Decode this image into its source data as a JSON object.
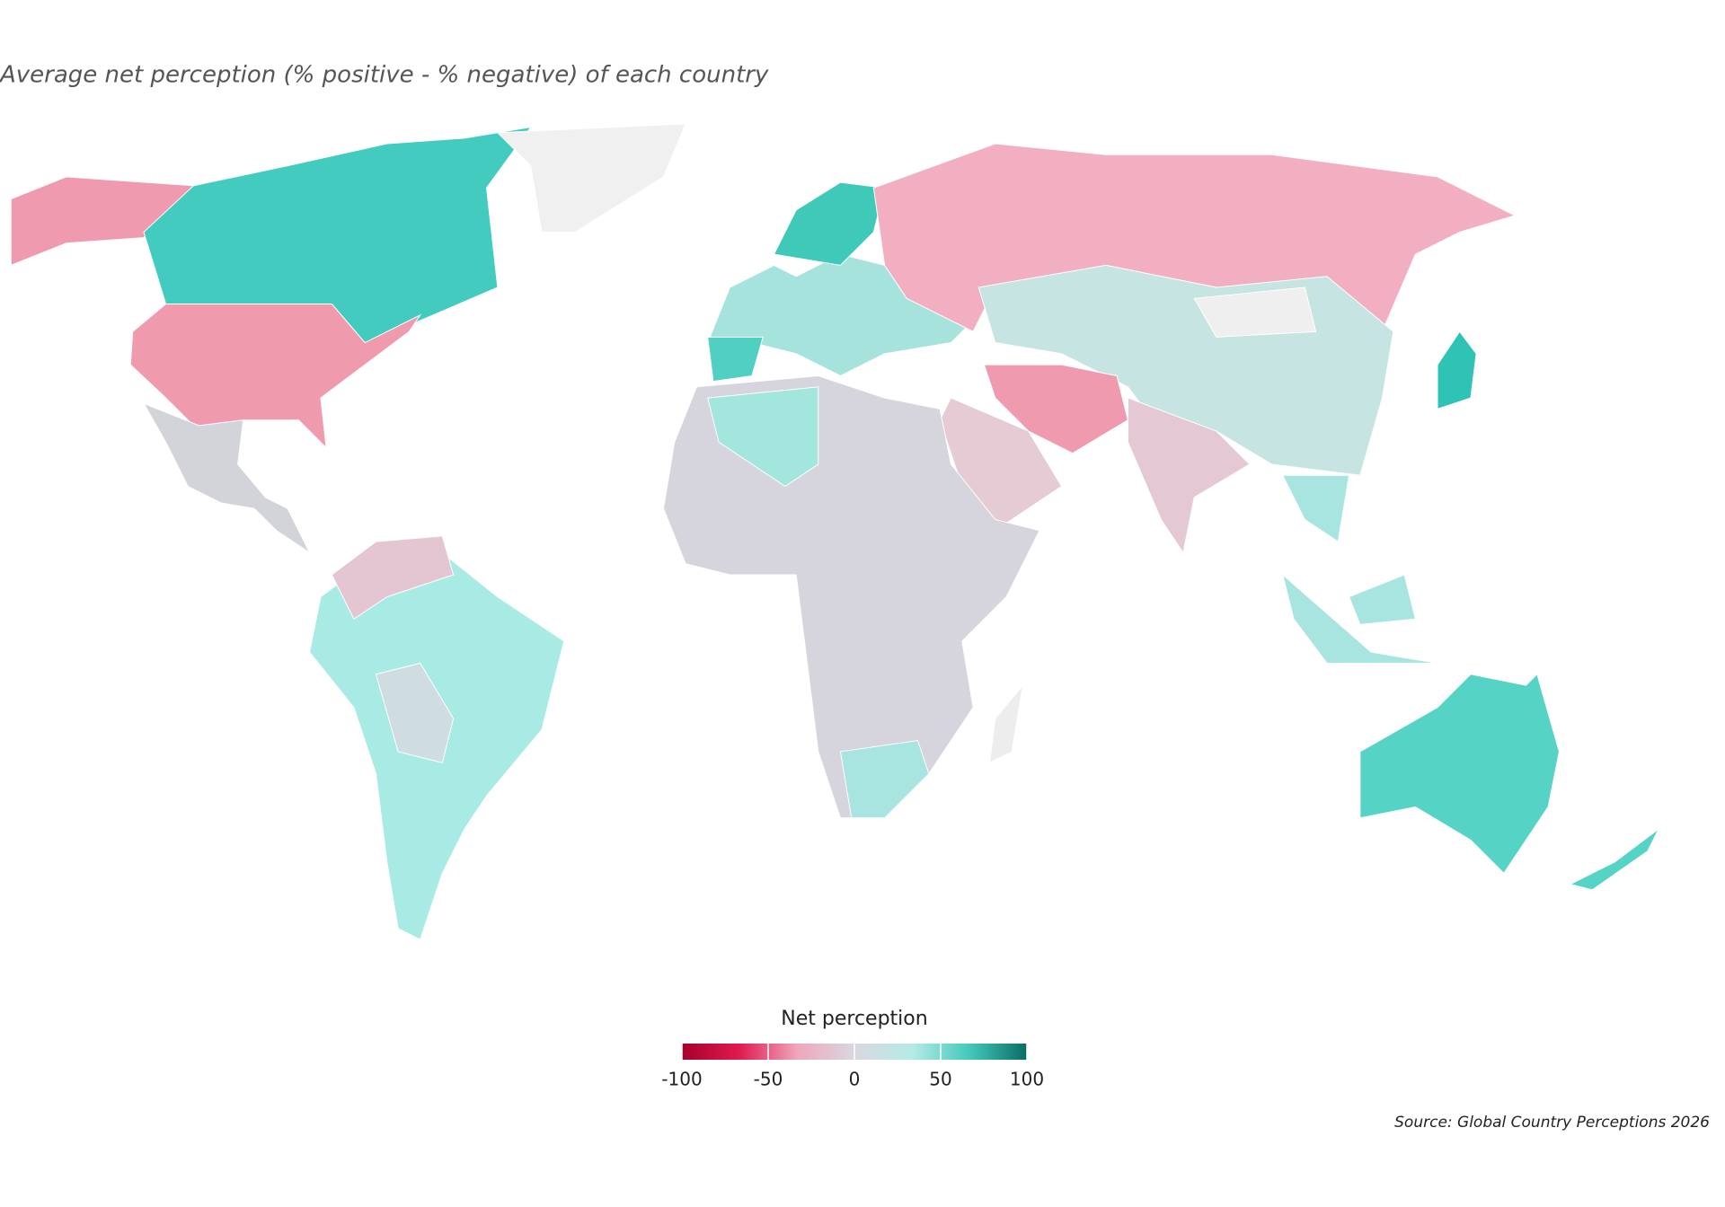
{
  "chart_data": {
    "type": "choropleth",
    "title": "Average net perception (% positive - % negative) of each country",
    "legend_title": "Net perception",
    "clim": [
      -100,
      100
    ],
    "cticks": [
      -100,
      -50,
      0,
      50,
      100
    ],
    "colors": [
      "#a6002c",
      "#e01a4f",
      "#efa6bb",
      "#d8d8e0",
      "#b6ebe5",
      "#43c9bb",
      "#0a6c64"
    ],
    "source": "Source: Global Country Perceptions 2026"
  }
}
